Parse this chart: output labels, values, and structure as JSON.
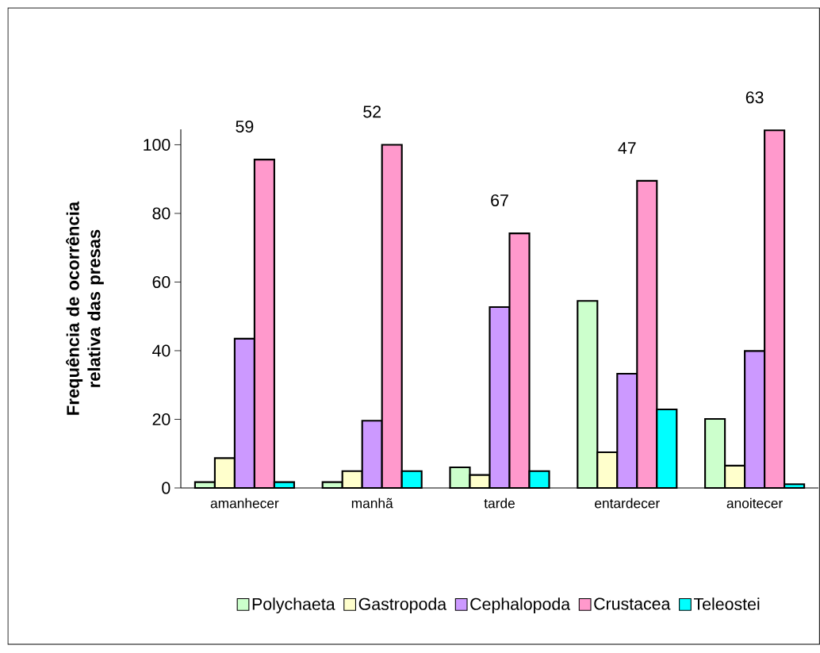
{
  "chart_data": {
    "type": "bar",
    "ylabel": "Frequência de ocorrência relativa das presas",
    "categories": [
      "amanhecer",
      "manhã",
      "tarde",
      "entardecer",
      "anoitecer"
    ],
    "series": [
      {
        "name": "Polychaeta",
        "color": "#ccffcc",
        "values": [
          1.7,
          1.7,
          6.0,
          54.5,
          20.1
        ]
      },
      {
        "name": "Gastropoda",
        "color": "#ffffcc",
        "values": [
          8.7,
          4.9,
          3.8,
          10.4,
          6.5
        ]
      },
      {
        "name": "Cephalopoda",
        "color": "#cc99ff",
        "values": [
          43.5,
          19.6,
          52.7,
          33.3,
          39.9
        ]
      },
      {
        "name": "Crustacea",
        "color": "#ff99cc",
        "values": [
          95.7,
          100,
          74.2,
          89.5,
          104.2
        ]
      },
      {
        "name": "Teleostei",
        "color": "#00ffff",
        "values": [
          1.7,
          4.9,
          4.9,
          22.9,
          1.1
        ]
      }
    ],
    "annotations": [
      "59",
      "52",
      "67",
      "47",
      "63"
    ],
    "ylim": [
      0,
      104.5
    ],
    "yticks": [
      0,
      20,
      40,
      60,
      80,
      100
    ],
    "grid": false,
    "legend": "bottom"
  }
}
